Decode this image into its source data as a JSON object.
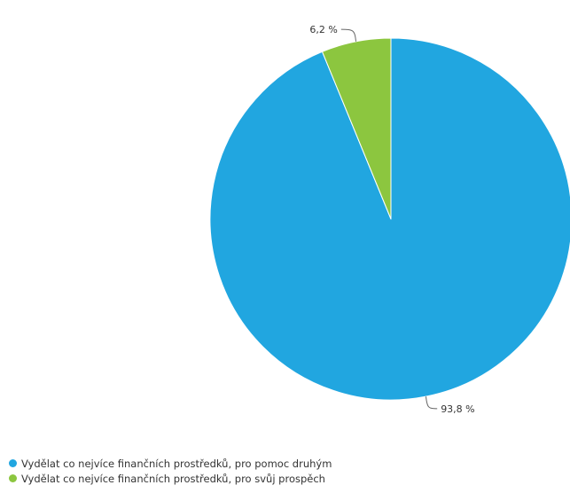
{
  "chart_data": {
    "type": "pie",
    "series": [
      {
        "name": "Vydělat co nejvíce finančních prostředků, pro pomoc druhým",
        "value": 93.8,
        "label": "93,8 %",
        "color": "#21a6e0"
      },
      {
        "name": "Vydělat co nejvíce finančních prostředků, pro svůj prospěch",
        "value": 6.2,
        "label": "6,2 %",
        "color": "#8cc63f"
      }
    ],
    "legend_position": "bottom-left"
  }
}
